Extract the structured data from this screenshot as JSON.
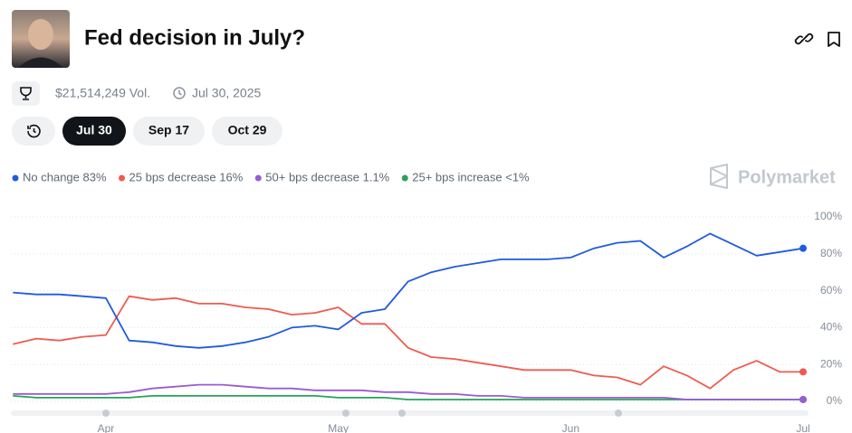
{
  "header": {
    "title": "Fed decision in July?",
    "volume": "$21,514,249 Vol.",
    "date": "Jul 30, 2025"
  },
  "tabs": [
    "Jul 30",
    "Sep 17",
    "Oct 29"
  ],
  "brand": "Polymarket",
  "chart_data": {
    "type": "line",
    "categories": [
      null,
      null,
      null,
      null,
      "Apr",
      null,
      null,
      null,
      null,
      null,
      null,
      null,
      null,
      null,
      "May",
      null,
      null,
      null,
      null,
      null,
      null,
      null,
      null,
      null,
      "Jun",
      null,
      null,
      null,
      null,
      null,
      null,
      null,
      null,
      null,
      "Jul"
    ],
    "series": [
      {
        "name": "No change 83%",
        "color": "#1f5ae0",
        "values": [
          59,
          58,
          58,
          57,
          56,
          33,
          32,
          30,
          29,
          30,
          32,
          35,
          40,
          41,
          39,
          48,
          50,
          65,
          70,
          73,
          75,
          77,
          77,
          77,
          78,
          83,
          86,
          87,
          78,
          84,
          91,
          85,
          79,
          81,
          83
        ]
      },
      {
        "name": "25 bps decrease 16%",
        "color": "#ef5b50",
        "values": [
          31,
          34,
          33,
          35,
          36,
          57,
          55,
          56,
          53,
          53,
          51,
          50,
          47,
          48,
          51,
          42,
          42,
          29,
          24,
          23,
          21,
          19,
          17,
          17,
          17,
          14,
          13,
          9,
          19,
          14,
          7,
          17,
          22,
          16,
          16
        ]
      },
      {
        "name": "50+ bps decrease 1.1%",
        "color": "#9b5bd4",
        "values": [
          4,
          4,
          4,
          4,
          4,
          5,
          7,
          8,
          9,
          9,
          8,
          7,
          7,
          6,
          6,
          6,
          5,
          5,
          4,
          4,
          3,
          3,
          2,
          2,
          2,
          2,
          2,
          2,
          2,
          1,
          1,
          1,
          1,
          1,
          1
        ]
      },
      {
        "name": "25+ bps increase <1%",
        "color": "#27a35a",
        "values": [
          3,
          2,
          2,
          2,
          2,
          2,
          3,
          3,
          3,
          3,
          3,
          3,
          3,
          3,
          2,
          2,
          2,
          1,
          1,
          1,
          1,
          1,
          1,
          1,
          1,
          1,
          1,
          1,
          1,
          1,
          1,
          1,
          1,
          1,
          1
        ]
      }
    ],
    "ylim": [
      0,
      100
    ],
    "yticks": [
      {
        "value": 0,
        "label": "0%"
      },
      {
        "value": 20,
        "label": "20%"
      },
      {
        "value": 40,
        "label": "40%"
      },
      {
        "value": 60,
        "label": "60%"
      },
      {
        "value": 80,
        "label": "80%"
      },
      {
        "value": 100,
        "label": "100%"
      }
    ],
    "grid": true
  }
}
